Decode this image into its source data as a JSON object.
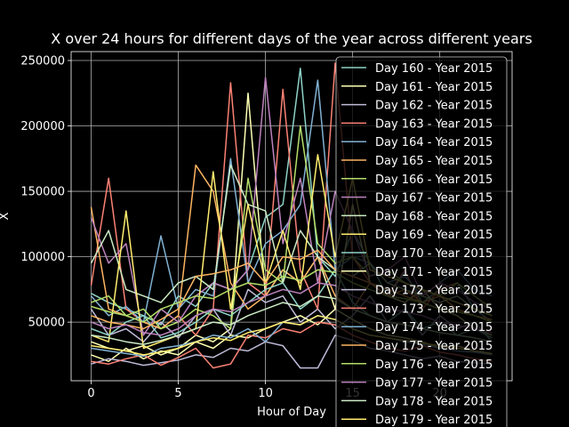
{
  "chart_data": {
    "type": "line",
    "title": "X over 24 hours for different days of the year across different years",
    "xlabel": "Hour of Day",
    "ylabel": "X",
    "xlim": [
      -1.15,
      24.15
    ],
    "ylim": [
      5200,
      256800
    ],
    "xticks": [
      0,
      5,
      10,
      15,
      20
    ],
    "yticks": [
      50000,
      100000,
      150000,
      200000,
      250000
    ],
    "grid": true,
    "legend_position": "right",
    "x": [
      0,
      1,
      2,
      3,
      4,
      5,
      6,
      7,
      8,
      9,
      10,
      11,
      12,
      13,
      14,
      15,
      16,
      17,
      18,
      19,
      20,
      21,
      22,
      23
    ],
    "series": [
      {
        "name": "Day 160 - Year 2015",
        "color": "#8dd3c7",
        "values": [
          72000,
          65000,
          60000,
          55000,
          48000,
          70000,
          62000,
          80000,
          75000,
          90000,
          130000,
          140000,
          244000,
          100000,
          85000,
          120000,
          95000,
          70000,
          88000,
          65000,
          75000,
          80000,
          60000,
          50000
        ]
      },
      {
        "name": "Day 161 - Year 2015",
        "color": "#feffb3",
        "values": [
          35000,
          30000,
          28000,
          32000,
          25000,
          30000,
          40000,
          35000,
          45000,
          225000,
          70000,
          90000,
          80000,
          100000,
          60000,
          140000,
          80000,
          70000,
          65000,
          75000,
          60000,
          55000,
          45000,
          40000
        ]
      },
      {
        "name": "Day 162 - Year 2015",
        "color": "#bfbbd9",
        "values": [
          60000,
          40000,
          45000,
          35000,
          50000,
          38000,
          55000,
          60000,
          40000,
          75000,
          65000,
          70000,
          50000,
          60000,
          45000,
          55000,
          70000,
          50000,
          60000,
          40000,
          55000,
          45000,
          50000,
          35000
        ]
      },
      {
        "name": "Day 163 - Year 2015",
        "color": "#fa8174",
        "values": [
          78000,
          160000,
          60000,
          50000,
          45000,
          55000,
          40000,
          60000,
          233000,
          80000,
          70000,
          228000,
          90000,
          60000,
          248000,
          100000,
          80000,
          70000,
          90000,
          60000,
          75000,
          80000,
          70000,
          60000
        ]
      },
      {
        "name": "Day 164 - Year 2015",
        "color": "#81b1d2",
        "values": [
          70000,
          55000,
          62000,
          50000,
          116000,
          60000,
          75000,
          70000,
          175000,
          80000,
          110000,
          120000,
          140000,
          235000,
          90000,
          100000,
          95000,
          80000,
          85000,
          70000,
          80000,
          90000,
          75000,
          70000
        ]
      },
      {
        "name": "Day 165 - Year 2015",
        "color": "#fdb462",
        "values": [
          138000,
          60000,
          55000,
          50000,
          45000,
          55000,
          170000,
          150000,
          80000,
          60000,
          70000,
          90000,
          80000,
          100000,
          70000,
          60000,
          80000,
          70000,
          75000,
          65000,
          70000,
          60000,
          55000,
          50000
        ]
      },
      {
        "name": "Day 166 - Year 2015",
        "color": "#b3de69",
        "values": [
          65000,
          70000,
          55000,
          60000,
          45000,
          50000,
          60000,
          55000,
          45000,
          160000,
          90000,
          80000,
          200000,
          110000,
          95000,
          100000,
          85000,
          90000,
          80000,
          75000,
          70000,
          80000,
          70000,
          60000
        ]
      },
      {
        "name": "Day 167 - Year 2015",
        "color": "#bc82bd",
        "values": [
          130000,
          95000,
          110000,
          40000,
          60000,
          50000,
          70000,
          80000,
          75000,
          90000,
          237000,
          110000,
          160000,
          80000,
          150000,
          120000,
          85000,
          90000,
          100000,
          70000,
          80000,
          75000,
          65000,
          60000
        ]
      },
      {
        "name": "Day 168 - Year 2015",
        "color": "#ccebc4",
        "values": [
          95000,
          120000,
          75000,
          70000,
          65000,
          80000,
          85000,
          75000,
          170000,
          140000,
          135000,
          80000,
          120000,
          100000,
          90000,
          85000,
          95000,
          80000,
          75000,
          70000,
          65000,
          70000,
          60000,
          55000
        ]
      },
      {
        "name": "Day 169 - Year 2015",
        "color": "#ffed6f",
        "values": [
          40000,
          35000,
          135000,
          30000,
          35000,
          40000,
          45000,
          165000,
          60000,
          140000,
          80000,
          120000,
          75000,
          178000,
          100000,
          160000,
          90000,
          85000,
          80000,
          75000,
          70000,
          65000,
          60000,
          55000
        ]
      },
      {
        "name": "Day 170 - Year 2015",
        "color": "#8dd3c7",
        "values": [
          45000,
          40000,
          50000,
          55000,
          38000,
          42000,
          50000,
          60000,
          55000,
          65000,
          75000,
          80000,
          60000,
          70000,
          90000,
          65000,
          55000,
          50000,
          60000,
          45000,
          50000,
          40000,
          45000,
          38000
        ]
      },
      {
        "name": "Day 171 - Year 2015",
        "color": "#feffb3",
        "values": [
          25000,
          20000,
          30000,
          22000,
          28000,
          25000,
          35000,
          30000,
          40000,
          38000,
          45000,
          50000,
          55000,
          48000,
          60000,
          52000,
          45000,
          40000,
          38000,
          35000,
          30000,
          32000,
          28000,
          25000
        ]
      },
      {
        "name": "Day 172 - Year 2015",
        "color": "#bfbbd9",
        "values": [
          18000,
          22000,
          20000,
          17000,
          19000,
          21000,
          25000,
          23000,
          30000,
          28000,
          35000,
          32000,
          15000,
          15000,
          40000,
          36000,
          30000,
          28000,
          25000,
          22000,
          24000,
          20000,
          19000,
          18000
        ]
      },
      {
        "name": "Day 173 - Year 2015",
        "color": "#fa8174",
        "values": [
          20000,
          18000,
          22000,
          25000,
          17000,
          23000,
          30000,
          15000,
          18000,
          40000,
          38000,
          45000,
          42000,
          50000,
          48000,
          40000,
          35000,
          30000,
          28000,
          32000,
          27000,
          25000,
          22000,
          20000
        ]
      },
      {
        "name": "Day 174 - Year 2015",
        "color": "#81b1d2",
        "values": [
          30000,
          28000,
          26000,
          24000,
          30000,
          32000,
          35000,
          40000,
          38000,
          45000,
          35000,
          50000,
          48000,
          55000,
          52000,
          45000,
          40000,
          38000,
          35000,
          33000,
          30000,
          28000,
          27000,
          25000
        ]
      },
      {
        "name": "Day 175 - Year 2015",
        "color": "#fdb462",
        "values": [
          55000,
          50000,
          48000,
          45000,
          52000,
          60000,
          85000,
          87000,
          90000,
          95000,
          80000,
          100000,
          98000,
          105000,
          90000,
          85000,
          80000,
          75000,
          70000,
          65000,
          60000,
          58000,
          55000,
          52000
        ]
      },
      {
        "name": "Day 176 - Year 2015",
        "color": "#b3de69",
        "values": [
          62000,
          58000,
          55000,
          50000,
          60000,
          65000,
          70000,
          68000,
          75000,
          80000,
          78000,
          85000,
          82000,
          90000,
          88000,
          80000,
          75000,
          70000,
          68000,
          65000,
          60000,
          58000,
          55000,
          50000
        ]
      },
      {
        "name": "Day 177 - Year 2015",
        "color": "#bc82bd",
        "values": [
          50000,
          45000,
          48000,
          42000,
          40000,
          45000,
          55000,
          60000,
          58000,
          65000,
          70000,
          75000,
          72000,
          80000,
          78000,
          70000,
          65000,
          60000,
          58000,
          55000,
          50000,
          48000,
          45000,
          42000
        ]
      },
      {
        "name": "Day 178 - Year 2015",
        "color": "#ccebc4",
        "values": [
          40000,
          38000,
          35000,
          33000,
          36000,
          40000,
          45000,
          50000,
          48000,
          55000,
          60000,
          65000,
          62000,
          70000,
          68000,
          60000,
          55000,
          50000,
          48000,
          45000,
          42000,
          40000,
          38000,
          35000
        ]
      },
      {
        "name": "Day 179 - Year 2015",
        "color": "#ffed6f",
        "values": [
          32000,
          30000,
          28000,
          25000,
          27000,
          30000,
          35000,
          38000,
          36000,
          42000,
          45000,
          50000,
          48000,
          55000,
          52000,
          45000,
          40000,
          38000,
          36000,
          34000,
          32000,
          30000,
          28000,
          26000
        ]
      }
    ]
  }
}
